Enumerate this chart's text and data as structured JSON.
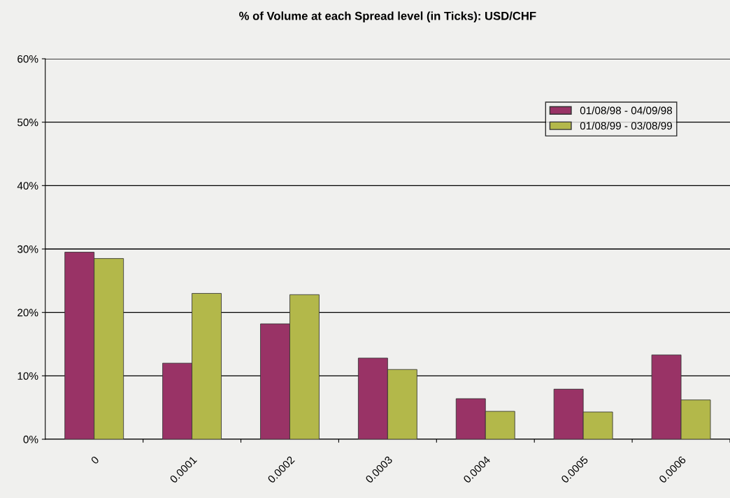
{
  "chart_data": {
    "type": "bar",
    "title": "% of Volume at each Spread level (in Ticks): USD/CHF",
    "categories": [
      "0",
      "0.0001",
      "0.0002",
      "0.0003",
      "0.0004",
      "0.0005",
      "0.0006"
    ],
    "series": [
      {
        "name": "01/08/98 - 04/09/98",
        "color": "#993366",
        "values": [
          29.5,
          12.0,
          18.2,
          12.8,
          6.4,
          7.9,
          13.3
        ]
      },
      {
        "name": "01/08/99 - 03/08/99",
        "color": "#b3b84a",
        "values": [
          28.5,
          23.0,
          22.8,
          11.0,
          4.4,
          4.3,
          6.2
        ]
      }
    ],
    "ylim": [
      0,
      60
    ],
    "yticks": [
      {
        "value": 0,
        "label": "0%"
      },
      {
        "value": 10,
        "label": "10%"
      },
      {
        "value": 20,
        "label": "20%"
      },
      {
        "value": 30,
        "label": "30%"
      },
      {
        "value": 40,
        "label": "40%"
      },
      {
        "value": 50,
        "label": "50%"
      },
      {
        "value": 60,
        "label": "60%"
      }
    ],
    "grid": "y",
    "legend": "top right"
  }
}
